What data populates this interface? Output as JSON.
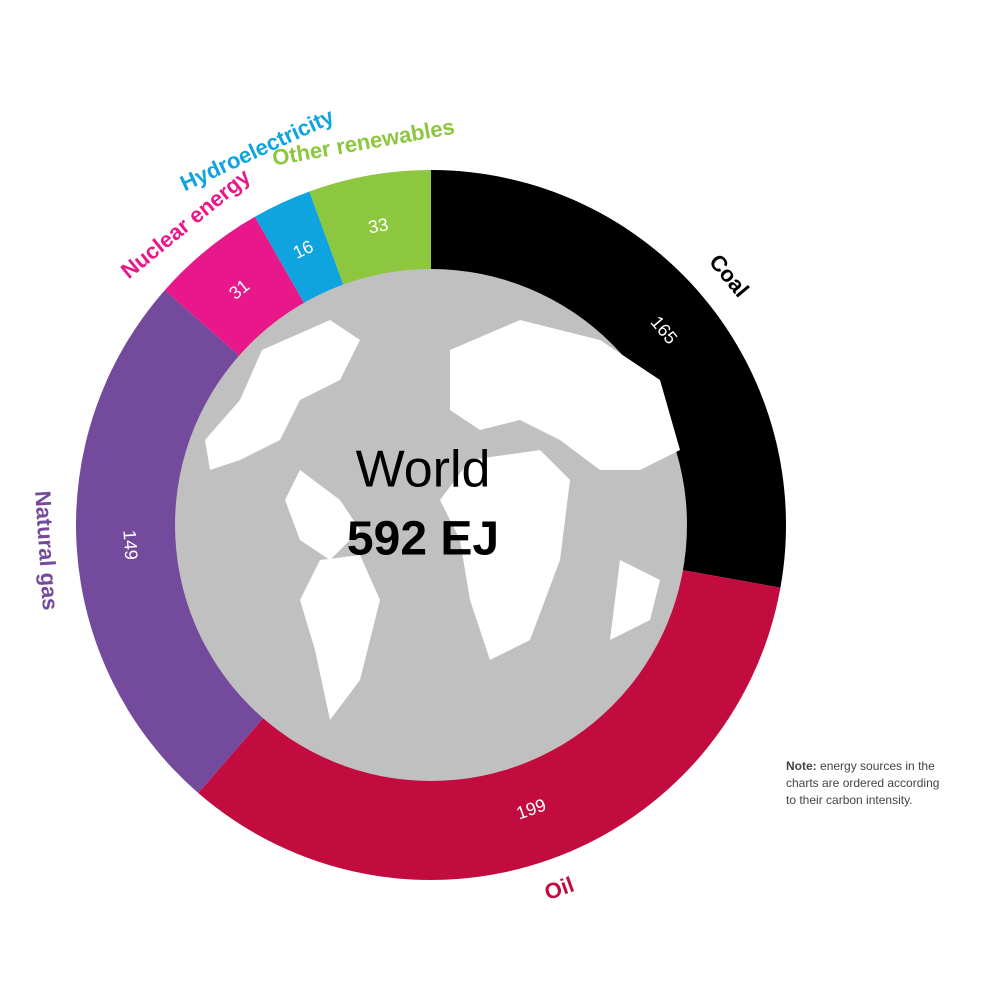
{
  "chart_data": {
    "type": "donut",
    "categories": [
      "Coal",
      "Oil",
      "Natural gas",
      "Nuclear energy",
      "Hydroelectricity",
      "Other renewables"
    ],
    "values": [
      165,
      199,
      149,
      31,
      16,
      33
    ],
    "colors": [
      "#000000",
      "#c20c3f",
      "#734a9c",
      "#e8178a",
      "#0fa3e0",
      "#8dc63f"
    ],
    "center_title": "World",
    "center_total": "592 EJ",
    "note_label": "Note:",
    "note_lines": [
      "energy sources in the",
      "charts are ordered according",
      "to their carbon intensity."
    ]
  }
}
